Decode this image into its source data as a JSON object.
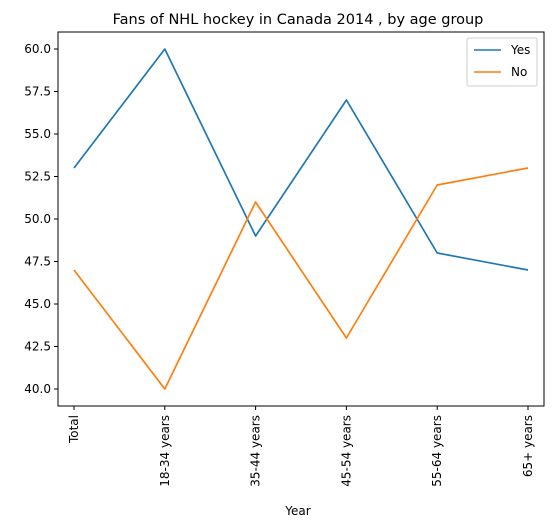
{
  "chart_data": {
    "type": "line",
    "title": "Fans of NHL hockey in Canada 2014 , by age group",
    "xlabel": "Year",
    "ylabel": "",
    "categories": [
      "Total",
      "18-34 years",
      "35-44 years",
      "45-54 years",
      "55-64 years",
      "65+ years"
    ],
    "series": [
      {
        "name": "Yes",
        "color": "#1f77b4",
        "values": [
          53,
          60,
          49,
          57,
          48,
          47
        ]
      },
      {
        "name": "No",
        "color": "#ff7f0e",
        "values": [
          47,
          40,
          51,
          43,
          52,
          53
        ]
      }
    ],
    "ylim": [
      39,
      61
    ],
    "yticks": [
      40.0,
      42.5,
      45.0,
      47.5,
      50.0,
      52.5,
      55.0,
      57.5,
      60.0
    ],
    "ytick_labels": [
      "40.0",
      "42.5",
      "45.0",
      "47.5",
      "50.0",
      "52.5",
      "55.0",
      "57.5",
      "60.0"
    ],
    "grid": false,
    "legend_position": "top-right"
  }
}
